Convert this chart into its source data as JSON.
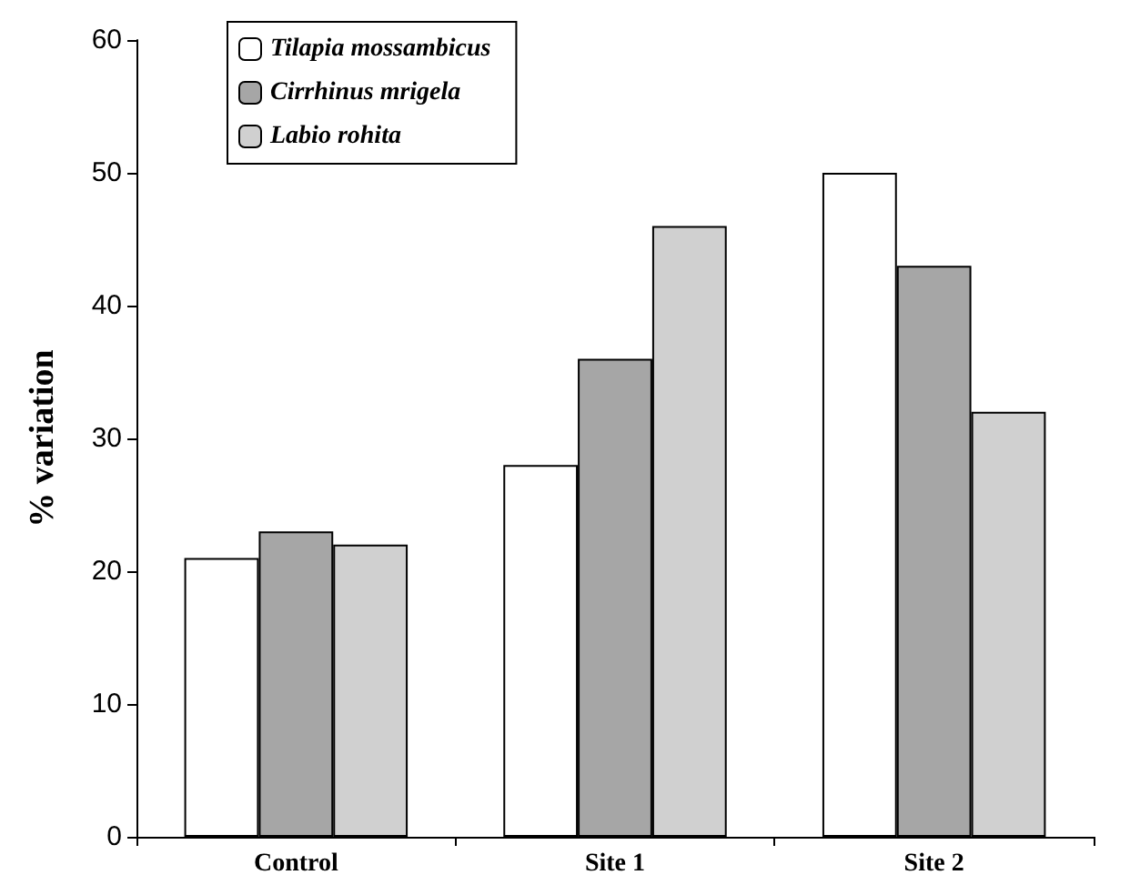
{
  "chart_data": {
    "type": "bar",
    "ylabel": "% variation",
    "categories": [
      "Control",
      "Site 1",
      "Site 2"
    ],
    "series": [
      {
        "name": "Tilapia mossambicus",
        "color": "#ffffff",
        "values": [
          21,
          28,
          50
        ]
      },
      {
        "name": "Cirrhinus mrigela",
        "color": "#a6a6a6",
        "values": [
          23,
          36,
          43
        ]
      },
      {
        "name": "Labio rohita",
        "color": "#d0d0d0",
        "values": [
          22,
          46,
          32
        ]
      }
    ],
    "ylim": [
      0,
      60
    ],
    "yticks": [
      0,
      10,
      20,
      30,
      40,
      50,
      60
    ],
    "grid": false,
    "legend": "top left"
  }
}
